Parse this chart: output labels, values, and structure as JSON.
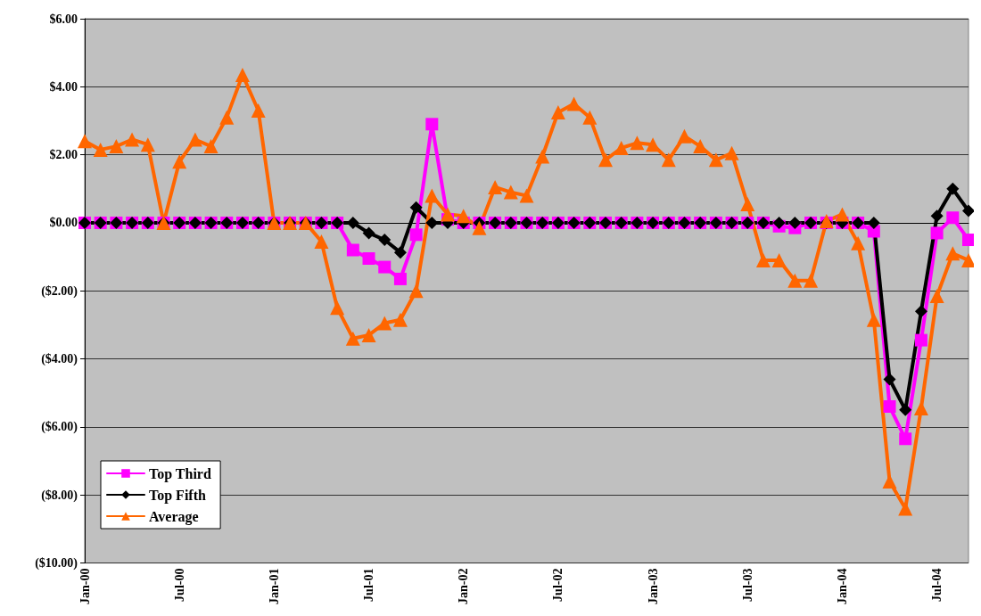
{
  "chart_data": {
    "type": "line",
    "categories": [
      "Jan-00",
      null,
      null,
      null,
      null,
      null,
      "Jul-00",
      null,
      null,
      null,
      null,
      null,
      "Jan-01",
      null,
      null,
      null,
      null,
      null,
      "Jul-01",
      null,
      null,
      null,
      null,
      null,
      "Jan-02",
      null,
      null,
      null,
      null,
      null,
      "Jul-02",
      null,
      null,
      null,
      null,
      null,
      "Jan-03",
      null,
      null,
      null,
      null,
      null,
      "Jul-03",
      null,
      null,
      null,
      null,
      null,
      "Jan-04",
      null,
      null,
      null,
      null,
      null,
      "Jul-04",
      null,
      null
    ],
    "series": [
      {
        "name": "Top Third",
        "color": "#ff00ff",
        "marker": "square",
        "values": [
          0,
          0,
          0,
          0,
          0,
          0,
          0,
          0,
          0,
          0,
          0,
          0,
          0,
          0,
          0,
          0,
          0,
          -0.8,
          -1.05,
          -1.3,
          -1.65,
          -0.35,
          2.9,
          0.1,
          0,
          0,
          0,
          0,
          0,
          0,
          0,
          0,
          0,
          0,
          0,
          0,
          0,
          0,
          0,
          0,
          0,
          0,
          0,
          0,
          -0.1,
          -0.15,
          0,
          0,
          0,
          0,
          -0.25,
          -5.4,
          -6.35,
          -3.45,
          -0.3,
          0.15,
          -0.5
        ]
      },
      {
        "name": "Top Fifth",
        "color": "#000000",
        "marker": "diamond",
        "values": [
          0,
          0,
          0,
          0,
          0,
          0,
          0,
          0,
          0,
          0,
          0,
          0,
          0,
          0,
          0,
          0,
          0,
          0,
          -0.3,
          -0.5,
          -0.87,
          0.45,
          0,
          0,
          0,
          0,
          0,
          0,
          0,
          0,
          0,
          0,
          0,
          0,
          0,
          0,
          0,
          0,
          0,
          0,
          0,
          0,
          0,
          0,
          0,
          0,
          0,
          0,
          0,
          0,
          0,
          -4.6,
          -5.5,
          -2.6,
          0.2,
          1.0,
          0.35
        ]
      },
      {
        "name": "Average",
        "color": "#ff6600",
        "marker": "triangle",
        "values": [
          2.4,
          2.15,
          2.25,
          2.45,
          2.3,
          0,
          1.8,
          2.45,
          2.25,
          3.1,
          4.35,
          3.3,
          0,
          0,
          0,
          -0.55,
          -2.5,
          -3.4,
          -3.3,
          -2.95,
          -2.85,
          -2.0,
          0.8,
          0.25,
          0.2,
          -0.15,
          1.05,
          0.9,
          0.8,
          1.95,
          3.25,
          3.5,
          3.1,
          1.85,
          2.2,
          2.35,
          2.3,
          1.85,
          2.55,
          2.25,
          1.85,
          2.05,
          0.55,
          -1.1,
          -1.1,
          -1.7,
          -1.7,
          0.05,
          0.25,
          -0.6,
          -2.85,
          -7.6,
          -8.4,
          -5.45,
          -2.15,
          -0.9,
          -1.1
        ]
      }
    ],
    "ylim": [
      -10,
      6
    ],
    "yticks": [
      {
        "value": -10,
        "label": "($10.00)"
      },
      {
        "value": -8,
        "label": "($8.00)"
      },
      {
        "value": -6,
        "label": "($6.00)"
      },
      {
        "value": -4,
        "label": "($4.00)"
      },
      {
        "value": -2,
        "label": "($2.00)"
      },
      {
        "value": 0,
        "label": "$0.00"
      },
      {
        "value": 2,
        "label": "$2.00"
      },
      {
        "value": 4,
        "label": "$4.00"
      },
      {
        "value": 6,
        "label": "$6.00"
      }
    ],
    "grid": "y",
    "legend": "bottom left",
    "line_style": "solid"
  }
}
